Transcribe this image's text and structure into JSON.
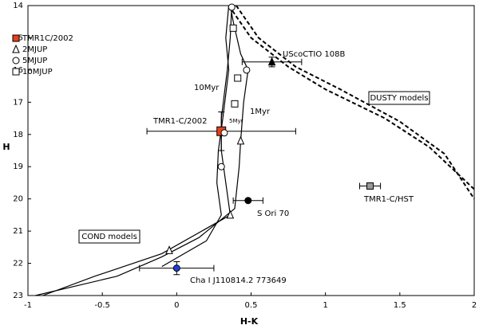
{
  "chart_data": {
    "type": "scatter",
    "xlabel": "H-K",
    "ylabel": "H",
    "xlim": [
      -1,
      2
    ],
    "ylim": [
      14,
      23
    ],
    "y_inverted": true,
    "xticks": [
      -1,
      -0.5,
      0,
      0.5,
      1,
      1.5,
      2
    ],
    "yticks": [
      14,
      15,
      16,
      17,
      18,
      19,
      20,
      21,
      22,
      23
    ],
    "series": [
      {
        "name": "TMR1C/2002",
        "marker": "square",
        "color": "#e8401c",
        "x": [
          0.3
        ],
        "y": [
          17.9
        ],
        "xerr": [
          0.5
        ],
        "yerr": [
          0.6
        ]
      },
      {
        "name": "2MJUP",
        "marker": "triangle",
        "color": "#ffffff",
        "x": [
          0.43,
          0.36,
          -0.05
        ],
        "y": [
          18.2,
          20.5,
          21.6
        ]
      },
      {
        "name": "5MJUP",
        "marker": "circle",
        "color": "#ffffff",
        "x": [
          0.37,
          0.47,
          0.32,
          0.3
        ],
        "y": [
          14.05,
          16.0,
          17.95,
          19.0
        ]
      },
      {
        "name": "10MJUP",
        "marker": "square",
        "color": "#ffffff",
        "x": [
          0.38,
          0.41,
          0.39
        ],
        "y": [
          14.7,
          16.25,
          17.05
        ]
      }
    ],
    "objects": [
      {
        "label": "UScoCTIO 108B",
        "marker": "triangle",
        "color": "#000000",
        "x": 0.64,
        "y": 15.75,
        "xerr": 0.2,
        "yerr": 0.15
      },
      {
        "label": "S Ori 70",
        "marker": "circle",
        "color": "#000000",
        "x": 0.48,
        "y": 20.05,
        "xerr": 0.1
      },
      {
        "label": "TMR1-C/HST",
        "marker": "square",
        "color": "#999999",
        "x": 1.3,
        "y": 19.6,
        "xerr": 0.07
      },
      {
        "label": "Cha I J110814.2 773649",
        "marker": "circle",
        "color": "#1f3fd8",
        "x": 0,
        "y": 22.15,
        "xerr": 0.25,
        "yerr": 0.2
      }
    ],
    "models": [
      {
        "style": "solid",
        "x": [
          0.36,
          0.38,
          0.43,
          0.48,
          0.45,
          0.43,
          0.42,
          0.39,
          0.15,
          -0.1,
          -0.4,
          -0.95
        ],
        "y": [
          14.0,
          14.5,
          15.5,
          16.0,
          17.0,
          18.2,
          19.0,
          20.3,
          21.2,
          21.8,
          22.4,
          23.0
        ]
      },
      {
        "style": "solid",
        "x": [
          0.35,
          0.33,
          0.35,
          0.31,
          0.28,
          0.27,
          0.3,
          0.2,
          -0.1
        ],
        "y": [
          14.0,
          15.0,
          16.0,
          17.5,
          18.5,
          19.5,
          20.5,
          21.3,
          22.1
        ]
      },
      {
        "style": "solid",
        "x": [
          0.37,
          0.36,
          0.34,
          0.3,
          0.3,
          0.33,
          0.36,
          -0.1,
          -0.55,
          -0.9
        ],
        "y": [
          14.0,
          15.0,
          16.0,
          17.5,
          18.5,
          19.5,
          20.5,
          21.7,
          22.4,
          23.0
        ]
      },
      {
        "style": "dashed",
        "x": [
          0.35,
          0.5,
          0.75,
          1.0,
          1.4,
          1.7,
          2.0
        ],
        "y": [
          14.0,
          15.0,
          15.9,
          16.6,
          17.5,
          18.4,
          19.7
        ]
      },
      {
        "style": "dashed",
        "x": [
          0.4,
          0.55,
          0.8,
          1.1,
          1.5,
          1.8,
          2.0
        ],
        "y": [
          14.0,
          15.0,
          15.9,
          16.6,
          17.6,
          18.6,
          20.0
        ]
      }
    ],
    "annotations": [
      "10Myr",
      "1Myr",
      "5Myr",
      "TMR1-C/2002"
    ],
    "boxes": [
      "DUSTY models",
      "COND models"
    ]
  }
}
